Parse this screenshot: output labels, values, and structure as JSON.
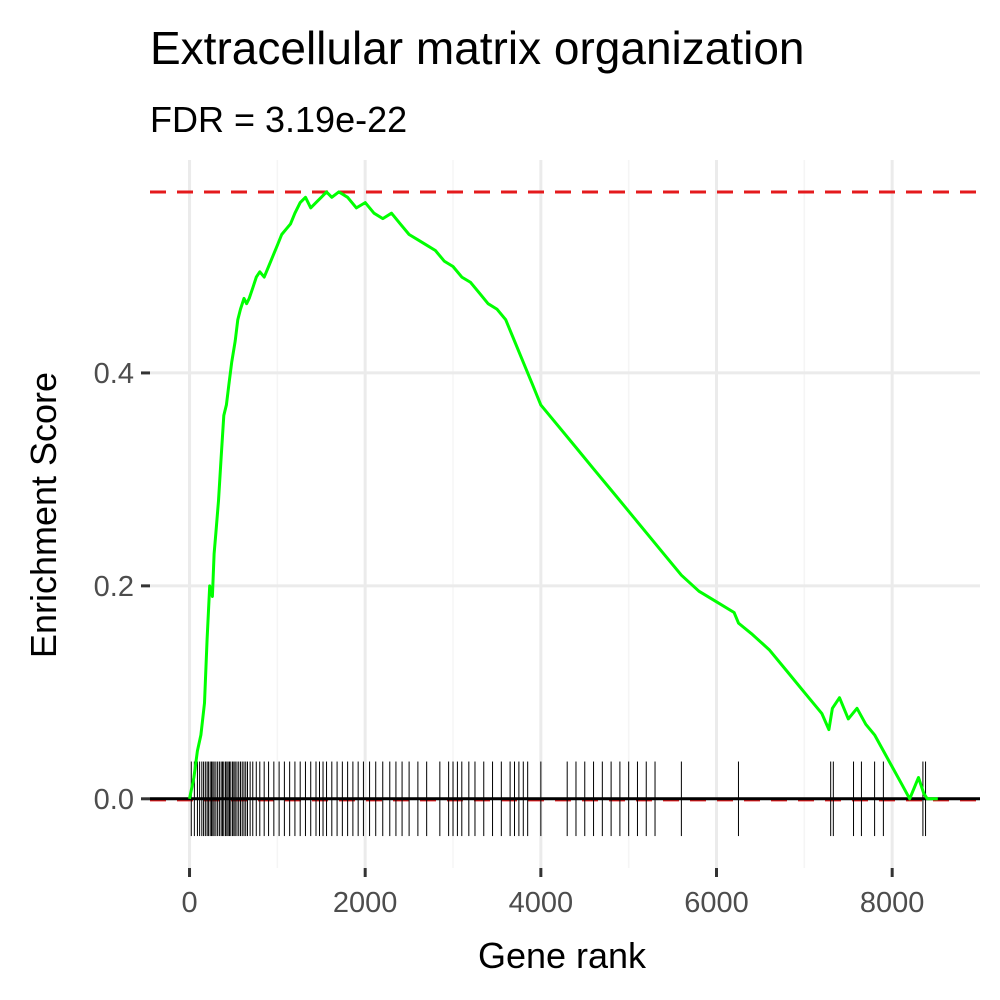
{
  "chart_data": {
    "type": "line",
    "title": "Extracellular matrix organization",
    "subtitle": "FDR = 3.19e-22",
    "xlabel": "Gene rank",
    "ylabel": "Enrichment Score",
    "xlim": [
      -450,
      9000
    ],
    "ylim": [
      -0.065,
      0.6
    ],
    "x_ticks": [
      0,
      2000,
      4000,
      6000,
      8000
    ],
    "x_tick_labels": [
      "0",
      "2000",
      "4000",
      "6000",
      "8000"
    ],
    "y_ticks": [
      0.0,
      0.2,
      0.4
    ],
    "y_tick_labels": [
      "0.0",
      "0.2",
      "0.4"
    ],
    "grid": true,
    "reference_lines": {
      "max_es": 0.57,
      "min_es": -0.001,
      "style": "dashed",
      "color": "#e41a1c"
    },
    "zero_line_color": "#000000",
    "series": [
      {
        "color": "#00ff00",
        "x": [
          0,
          50,
          90,
          130,
          170,
          200,
          230,
          260,
          280,
          300,
          330,
          360,
          390,
          420,
          450,
          480,
          520,
          550,
          580,
          620,
          650,
          680,
          720,
          760,
          800,
          850,
          900,
          950,
          1000,
          1050,
          1100,
          1150,
          1200,
          1260,
          1320,
          1380,
          1440,
          1500,
          1560,
          1620,
          1700,
          1800,
          1900,
          2000,
          2100,
          2200,
          2300,
          2400,
          2500,
          2600,
          2700,
          2800,
          2900,
          3000,
          3100,
          3200,
          3300,
          3400,
          3500,
          3600,
          3700,
          3800,
          3900,
          4000,
          4200,
          4400,
          4600,
          4800,
          5000,
          5200,
          5400,
          5600,
          5800,
          6000,
          6200,
          6250,
          6400,
          6600,
          6800,
          7000,
          7200,
          7280,
          7320,
          7400,
          7500,
          7600,
          7700,
          7800,
          7900,
          8000,
          8100,
          8200,
          8300,
          8360,
          8400,
          8520
        ],
        "y": [
          0.0,
          0.02,
          0.045,
          0.06,
          0.09,
          0.15,
          0.2,
          0.19,
          0.23,
          0.25,
          0.28,
          0.32,
          0.36,
          0.37,
          0.39,
          0.41,
          0.43,
          0.45,
          0.46,
          0.47,
          0.465,
          0.47,
          0.48,
          0.49,
          0.495,
          0.49,
          0.5,
          0.51,
          0.52,
          0.53,
          0.535,
          0.54,
          0.55,
          0.56,
          0.565,
          0.555,
          0.56,
          0.565,
          0.57,
          0.565,
          0.57,
          0.565,
          0.555,
          0.56,
          0.55,
          0.545,
          0.55,
          0.54,
          0.53,
          0.525,
          0.52,
          0.515,
          0.505,
          0.5,
          0.49,
          0.485,
          0.475,
          0.465,
          0.46,
          0.45,
          0.43,
          0.41,
          0.39,
          0.37,
          0.35,
          0.33,
          0.31,
          0.29,
          0.27,
          0.25,
          0.23,
          0.21,
          0.195,
          0.185,
          0.175,
          0.165,
          0.155,
          0.14,
          0.12,
          0.1,
          0.08,
          0.065,
          0.085,
          0.095,
          0.075,
          0.085,
          0.07,
          0.06,
          0.045,
          0.03,
          0.015,
          0.0,
          0.02,
          0.005,
          0.0,
          0.0
        ]
      }
    ],
    "gene_ticks": [
      20,
      55,
      90,
      115,
      140,
      160,
      180,
      200,
      215,
      235,
      250,
      265,
      280,
      300,
      320,
      340,
      360,
      375,
      390,
      410,
      425,
      440,
      455,
      470,
      490,
      505,
      520,
      540,
      560,
      580,
      600,
      620,
      640,
      660,
      690,
      720,
      760,
      800,
      850,
      900,
      960,
      1020,
      1080,
      1140,
      1200,
      1260,
      1320,
      1380,
      1440,
      1480,
      1520,
      1560,
      1620,
      1680,
      1740,
      1800,
      1860,
      1920,
      1980,
      2050,
      2120,
      2200,
      2280,
      2350,
      2420,
      2500,
      2600,
      2700,
      2850,
      2950,
      3000,
      3050,
      3100,
      3180,
      3250,
      3350,
      3450,
      3550,
      3650,
      3700,
      3750,
      3800,
      3850,
      4000,
      4300,
      4400,
      4500,
      4600,
      4700,
      4800,
      4900,
      5000,
      5100,
      5200,
      5300,
      5600,
      6250,
      7300,
      7330,
      7560,
      7650,
      7800,
      7900,
      8350,
      8380
    ]
  }
}
